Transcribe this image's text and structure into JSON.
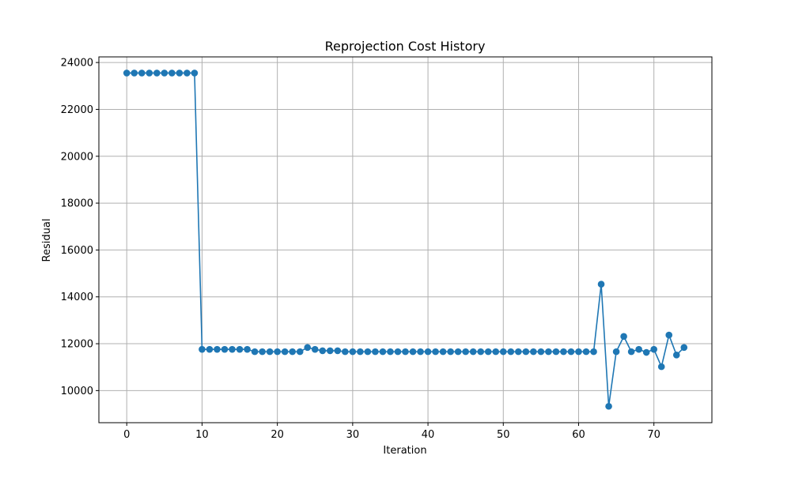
{
  "chart_data": {
    "type": "line",
    "title": "Reprojection Cost History",
    "xlabel": "Iteration",
    "ylabel": "Residual",
    "xlim": [
      -3.7,
      77.7
    ],
    "ylim": [
      8630,
      24240
    ],
    "xticks": [
      0,
      10,
      20,
      30,
      40,
      50,
      60,
      70
    ],
    "yticks": [
      10000,
      12000,
      14000,
      16000,
      18000,
      20000,
      22000,
      24000
    ],
    "grid": true,
    "marker": "circle",
    "series": [
      {
        "color": "#1f77b4",
        "x": [
          0,
          1,
          2,
          3,
          4,
          5,
          6,
          7,
          8,
          9,
          10,
          11,
          12,
          13,
          14,
          15,
          16,
          17,
          18,
          19,
          20,
          21,
          22,
          23,
          24,
          25,
          26,
          27,
          28,
          29,
          30,
          31,
          32,
          33,
          34,
          35,
          36,
          37,
          38,
          39,
          40,
          41,
          42,
          43,
          44,
          45,
          46,
          47,
          48,
          49,
          50,
          51,
          52,
          53,
          54,
          55,
          56,
          57,
          58,
          59,
          60,
          61,
          62,
          63,
          64,
          65,
          66,
          67,
          68,
          69,
          70,
          71,
          72,
          73,
          74
        ],
        "y": [
          23550,
          23550,
          23550,
          23550,
          23550,
          23550,
          23550,
          23550,
          23550,
          23550,
          11760,
          11760,
          11760,
          11760,
          11760,
          11760,
          11760,
          11660,
          11660,
          11660,
          11660,
          11660,
          11660,
          11660,
          11840,
          11760,
          11700,
          11700,
          11700,
          11660,
          11660,
          11660,
          11660,
          11660,
          11660,
          11660,
          11660,
          11660,
          11660,
          11660,
          11660,
          11660,
          11660,
          11660,
          11660,
          11660,
          11660,
          11660,
          11660,
          11660,
          11660,
          11660,
          11660,
          11660,
          11660,
          11660,
          11660,
          11660,
          11660,
          11660,
          11660,
          11660,
          11660,
          14540,
          9330,
          11660,
          12310,
          11660,
          11760,
          11630,
          11760,
          11020,
          12370,
          11520,
          11840
        ]
      }
    ]
  }
}
